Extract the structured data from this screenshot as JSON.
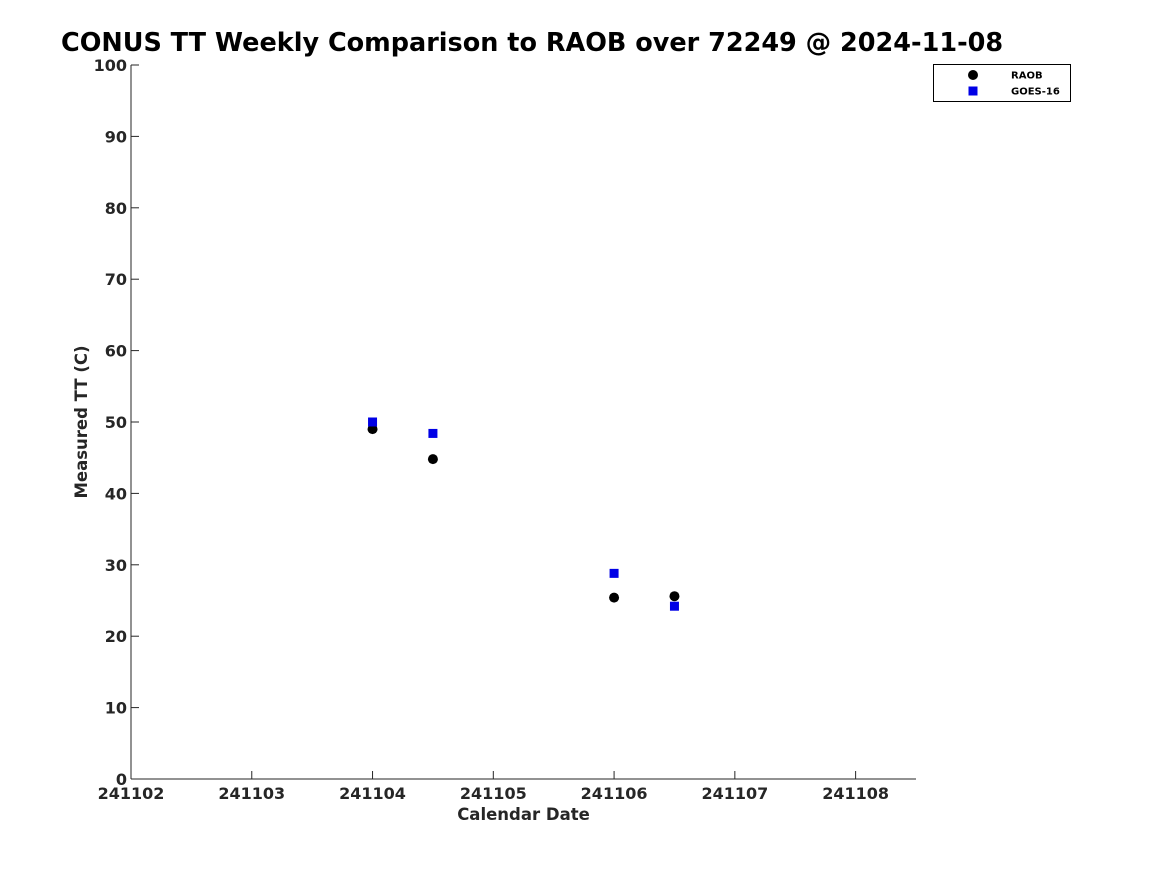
{
  "chart_data": {
    "type": "scatter",
    "title": "CONUS TT Weekly Comparison to RAOB over 72249 @ 2024-11-08",
    "xlabel": "Calendar Date",
    "ylabel": "Measured TT (C)",
    "x_ticks": [
      "241102",
      "241103",
      "241104",
      "241105",
      "241106",
      "241107",
      "241108"
    ],
    "xlim": [
      "2024-11-02",
      "2024-11-08T12:00"
    ],
    "ylim": [
      0,
      100
    ],
    "y_ticks": [
      0,
      10,
      20,
      30,
      40,
      50,
      60,
      70,
      80,
      90,
      100
    ],
    "grid": false,
    "legend_position": "top-right",
    "series": [
      {
        "name": "RAOB",
        "marker": "circle",
        "color": "#000000",
        "points": [
          {
            "x": "2024-11-04T00:00",
            "y": 49.0
          },
          {
            "x": "2024-11-04T12:00",
            "y": 44.8
          },
          {
            "x": "2024-11-06T00:00",
            "y": 25.4
          },
          {
            "x": "2024-11-06T12:00",
            "y": 25.6
          }
        ]
      },
      {
        "name": "GOES-16",
        "marker": "square",
        "color": "#0000e6",
        "points": [
          {
            "x": "2024-11-04T00:00",
            "y": 50.0
          },
          {
            "x": "2024-11-04T12:00",
            "y": 48.4
          },
          {
            "x": "2024-11-06T00:00",
            "y": 28.8
          },
          {
            "x": "2024-11-06T12:00",
            "y": 24.2
          }
        ]
      }
    ]
  }
}
